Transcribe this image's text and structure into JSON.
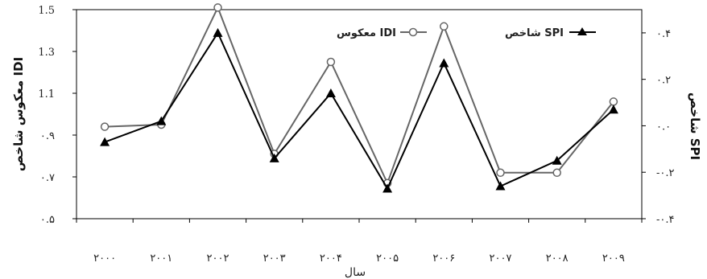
{
  "chart_data": {
    "type": "line",
    "x": [
      "۲۰۰۰",
      "۲۰۰۱",
      "۲۰۰۲",
      "۲۰۰۳",
      "۲۰۰۴",
      "۲۰۰۵",
      "۲۰۰۶",
      "۲۰۰۷",
      "۲۰۰۸",
      "۲۰۰۹"
    ],
    "xlabel": "سال",
    "ylabel_left": "معکوس شاخص IDI",
    "ylabel_right": "شاخص SPI",
    "ylim_left": [
      0.5,
      1.5
    ],
    "ylim_right": [
      -0.4,
      0.5
    ],
    "yticks_left": [
      "۰.۵",
      "۰.۷",
      "۰.۹",
      "1.1",
      "1.3",
      "1.5"
    ],
    "yticks_right": [
      "-۰.۴",
      "-۰.۲",
      "۰.۰",
      "۰.۲",
      "۰.۴"
    ],
    "legend_position": "top-right",
    "series": [
      {
        "name": "معکوس IDI",
        "axis": "left",
        "marker": "circle-open",
        "color": "#666666",
        "values": [
          0.94,
          0.95,
          1.51,
          0.81,
          1.25,
          0.67,
          1.42,
          0.72,
          0.72,
          1.06
        ]
      },
      {
        "name": "شاخص SPI",
        "axis": "right",
        "marker": "triangle-filled",
        "color": "#000000",
        "values": [
          -0.07,
          0.02,
          0.4,
          -0.14,
          0.14,
          -0.27,
          0.27,
          -0.26,
          -0.15,
          0.07
        ]
      }
    ]
  }
}
